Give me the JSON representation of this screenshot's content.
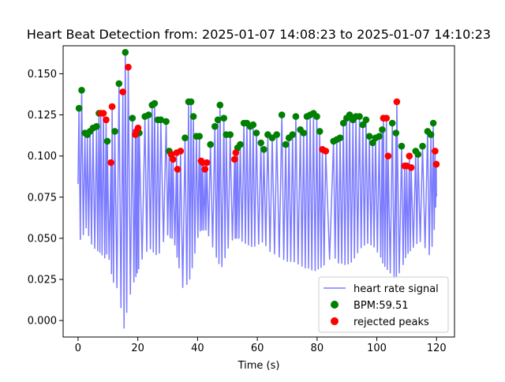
{
  "chart_data": {
    "type": "line",
    "title": "Heart Beat Detection from: 2025-01-07 14:08:23 to 2025-01-07 14:10:23",
    "xlabel": "Time (s)",
    "ylabel": "",
    "xlim": [
      -5,
      126
    ],
    "ylim": [
      -0.01,
      0.167
    ],
    "xticks": [
      0,
      20,
      40,
      60,
      80,
      100,
      120
    ],
    "yticks": [
      0.0,
      0.025,
      0.05,
      0.075,
      0.1,
      0.125,
      0.15
    ],
    "xtick_labels": [
      "0",
      "20",
      "40",
      "60",
      "80",
      "100",
      "120"
    ],
    "ytick_labels": [
      "0.000",
      "0.025",
      "0.050",
      "0.075",
      "0.100",
      "0.125",
      "0.150"
    ],
    "grid": false,
    "legend_position": "lower right",
    "series": [
      {
        "name": "heart rate signal",
        "kind": "line",
        "color": "#7b7bff",
        "envelope_time": [
          0,
          1,
          2,
          3,
          4,
          5,
          6,
          7,
          8,
          9,
          10,
          11,
          12,
          13,
          14,
          15,
          16,
          17,
          18,
          19,
          20,
          21,
          22,
          23,
          24,
          25,
          26,
          27,
          28,
          29,
          30,
          31,
          32,
          33,
          34,
          35,
          36,
          37,
          38,
          39,
          40,
          41,
          42,
          43,
          44,
          45,
          46,
          47,
          48,
          49,
          50,
          51,
          52,
          53,
          54,
          55,
          56,
          57,
          58,
          59,
          60,
          61,
          62,
          63,
          64,
          65,
          66,
          67,
          68,
          69,
          70,
          71,
          72,
          73,
          74,
          75,
          76,
          77,
          78,
          79,
          80,
          81,
          82,
          83,
          84,
          85,
          86,
          87,
          88,
          89,
          90,
          91,
          92,
          93,
          94,
          95,
          96,
          97,
          98,
          99,
          100,
          101,
          102,
          103,
          104,
          105,
          106,
          107,
          108,
          109,
          110,
          111,
          112,
          113,
          114,
          115,
          116,
          117,
          118,
          119,
          120
        ],
        "envelope_min": [
          0.083,
          0.038,
          0.057,
          0.056,
          0.048,
          0.045,
          0.043,
          0.042,
          0.04,
          0.038,
          0.042,
          0.03,
          0.022,
          0.02,
          0.017,
          -0.009,
          0.002,
          0.012,
          0.02,
          0.025,
          0.03,
          0.035,
          0.04,
          0.042,
          0.044,
          0.042,
          0.04,
          0.04,
          0.045,
          0.05,
          0.052,
          0.05,
          0.05,
          0.04,
          0.03,
          0.02,
          0.022,
          0.022,
          0.03,
          0.04,
          0.05,
          0.055,
          0.055,
          0.055,
          0.05,
          0.045,
          0.04,
          0.035,
          0.032,
          0.037,
          0.043,
          0.047,
          0.05,
          0.05,
          0.05,
          0.048,
          0.047,
          0.046,
          0.045,
          0.045,
          0.046,
          0.047,
          0.048,
          0.045,
          0.042,
          0.042,
          0.04,
          0.039,
          0.038,
          0.037,
          0.036,
          0.036,
          0.036,
          0.035,
          0.034,
          0.033,
          0.032,
          0.032,
          0.031,
          0.03,
          0.031,
          0.032,
          0.033,
          0.035,
          0.037,
          0.038,
          0.038,
          0.035,
          0.035,
          0.034,
          0.034,
          0.035,
          0.036,
          0.04,
          0.042,
          0.045,
          0.046,
          0.047,
          0.046,
          0.045,
          0.042,
          0.04,
          0.035,
          0.032,
          0.03,
          0.028,
          0.025,
          0.028,
          0.03,
          0.035,
          0.04,
          0.042,
          0.044,
          0.046,
          0.048,
          0.048,
          0.045,
          0.04,
          0.04,
          0.05,
          0.077
        ]
      },
      {
        "name": "BPM:59.51",
        "kind": "scatter",
        "color": "#008000",
        "x": [
          0.3,
          1.2,
          2.3,
          3.1,
          4.0,
          5.0,
          6.2,
          7.0,
          9.8,
          12.3,
          13.7,
          15.8,
          18.2,
          20.5,
          22.4,
          23.6,
          24.8,
          25.6,
          26.7,
          27.7,
          29.5,
          30.5,
          35.8,
          37.0,
          37.8,
          38.6,
          39.6,
          40.6,
          44.3,
          45.8,
          46.8,
          47.5,
          48.8,
          49.6,
          50.9,
          53.4,
          54.3,
          55.5,
          56.5,
          57.6,
          58.6,
          59.7,
          61.2,
          62.2,
          63.5,
          65.0,
          66.5,
          68.2,
          69.5,
          70.6,
          71.8,
          72.9,
          74.4,
          75.5,
          76.6,
          77.7,
          78.8,
          79.9,
          80.9,
          85.5,
          86.6,
          87.7,
          88.8,
          89.9,
          90.9,
          92.0,
          93.0,
          94.2,
          95.3,
          96.4,
          97.5,
          98.6,
          99.6,
          100.8,
          101.8,
          105.2,
          106.4,
          108.3,
          113.0,
          113.8,
          115.3,
          117.0,
          118.1,
          118.9
        ],
        "y": [
          0.129,
          0.14,
          0.114,
          0.113,
          0.115,
          0.117,
          0.118,
          0.126,
          0.109,
          0.115,
          0.144,
          0.163,
          0.123,
          0.114,
          0.124,
          0.125,
          0.131,
          0.132,
          0.122,
          0.122,
          0.121,
          0.103,
          0.111,
          0.133,
          0.133,
          0.124,
          0.112,
          0.112,
          0.107,
          0.118,
          0.122,
          0.131,
          0.123,
          0.113,
          0.113,
          0.105,
          0.107,
          0.12,
          0.12,
          0.118,
          0.119,
          0.114,
          0.108,
          0.104,
          0.113,
          0.111,
          0.113,
          0.125,
          0.107,
          0.111,
          0.113,
          0.124,
          0.116,
          0.114,
          0.124,
          0.125,
          0.126,
          0.124,
          0.115,
          0.109,
          0.11,
          0.111,
          0.12,
          0.123,
          0.125,
          0.122,
          0.124,
          0.124,
          0.119,
          0.122,
          0.112,
          0.108,
          0.111,
          0.112,
          0.116,
          0.12,
          0.114,
          0.106,
          0.103,
          0.101,
          0.106,
          0.115,
          0.113,
          0.12
        ]
      },
      {
        "name": "rejected peaks",
        "kind": "scatter",
        "color": "#ff0000",
        "x": [
          7.6,
          8.5,
          9.4,
          11.0,
          11.4,
          15.0,
          16.8,
          19.2,
          19.5,
          20.1,
          31.2,
          31.8,
          33.0,
          33.3,
          34.3,
          41.2,
          41.7,
          42.5,
          43.1,
          52.4,
          52.8,
          81.8,
          82.9,
          102.2,
          103.2,
          103.8,
          106.7,
          109.3,
          110.0,
          110.9,
          111.5,
          119.5,
          119.9
        ],
        "y": [
          0.126,
          0.126,
          0.122,
          0.096,
          0.13,
          0.139,
          0.154,
          0.113,
          0.115,
          0.117,
          0.101,
          0.098,
          0.102,
          0.092,
          0.103,
          0.097,
          0.096,
          0.092,
          0.096,
          0.098,
          0.102,
          0.104,
          0.103,
          0.123,
          0.123,
          0.1,
          0.133,
          0.094,
          0.094,
          0.1,
          0.093,
          0.103,
          0.095
        ]
      }
    ]
  }
}
